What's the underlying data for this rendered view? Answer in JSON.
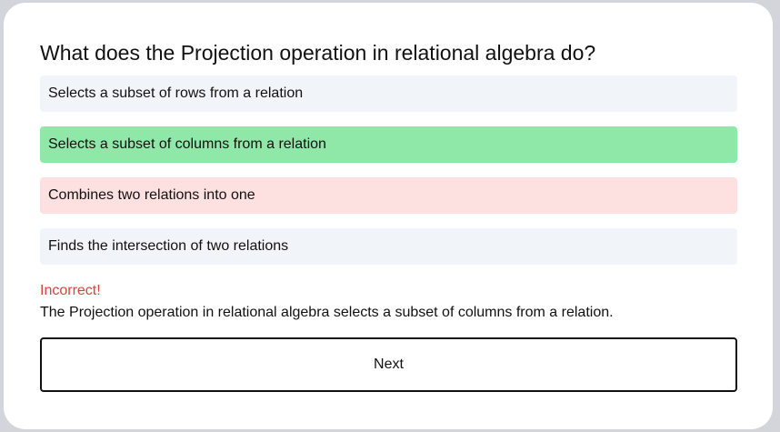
{
  "quiz": {
    "question": "What does the Projection operation in relational algebra do?",
    "options": [
      {
        "label": "Selects a subset of rows from a relation",
        "state": "neutral"
      },
      {
        "label": "Selects a subset of columns from a relation",
        "state": "correct"
      },
      {
        "label": "Combines two relations into one",
        "state": "incorrect-selected"
      },
      {
        "label": "Finds the intersection of two relations",
        "state": "neutral"
      }
    ],
    "feedback": {
      "status": "Incorrect!",
      "explanation": "The Projection operation in relational algebra selects a subset of columns from a relation."
    },
    "next_label": "Next"
  },
  "colors": {
    "page_background": "#d4d5db",
    "card": "#ffffff",
    "option_neutral": "#f1f4f9",
    "option_correct": "#8fe8a8",
    "option_incorrect": "#fde0e0",
    "incorrect_text": "#d9443a"
  }
}
